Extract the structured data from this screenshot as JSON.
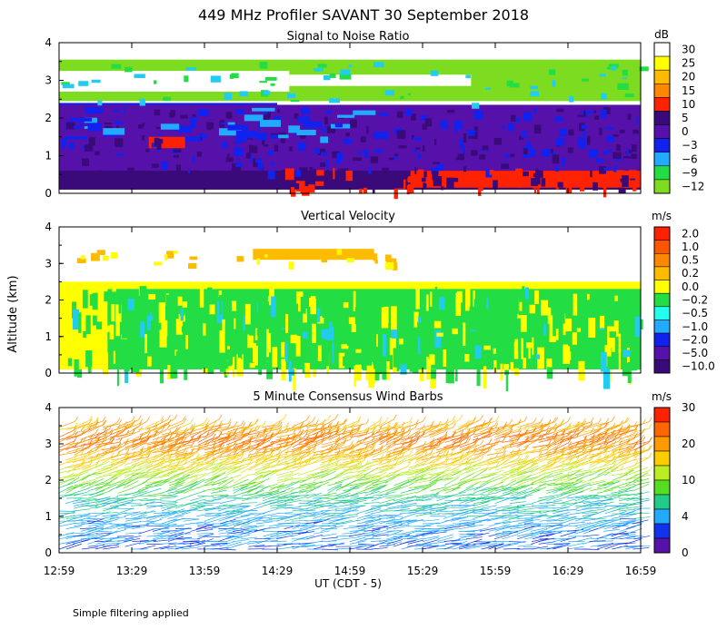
{
  "title": "449 MHz Profiler SAVANT 30 September 2018",
  "ylabel": "Altitude (km)",
  "xlabel": "UT  (CDT - 5)",
  "footnote": "Simple filtering applied",
  "time_ticks": [
    "12:59",
    "13:29",
    "13:59",
    "14:29",
    "14:59",
    "15:29",
    "15:59",
    "16:29",
    "16:59"
  ],
  "colors": {
    "lime": "#7ddc1f",
    "green": "#22dd44",
    "cyan": "#22ccee",
    "lightblue": "#22aaff",
    "blue": "#1122ee",
    "purple": "#5511aa",
    "darkpurple": "#3a0a7a",
    "red": "#ff2200",
    "orange": "#ff8800",
    "gold": "#ffbb00",
    "yellow": "#ffff00",
    "white": "#ffffff"
  },
  "chart_data": [
    {
      "type": "heatmap",
      "title": "Signal to Noise Ratio",
      "unit": "dB",
      "xlim": [
        "12:59",
        "16:59"
      ],
      "ylim": [
        0,
        4
      ],
      "yticks": [
        "0",
        "1",
        "2",
        "3",
        "4"
      ],
      "colorbar": {
        "labels": [
          "30",
          "25",
          "20",
          "15",
          "10",
          "5",
          "0",
          "−3",
          "−6",
          "−9",
          "−12"
        ],
        "colors": [
          "#ffffff",
          "#ffff00",
          "#ffbb00",
          "#ff8800",
          "#ff2200",
          "#3a0a7a",
          "#5511aa",
          "#1122ee",
          "#22aaff",
          "#22dd44",
          "#7ddc1f"
        ]
      },
      "layers": [
        {
          "color": "#7ddc1f",
          "y0": 2.45,
          "y1": 3.55,
          "x0": 0,
          "x1": 240
        },
        {
          "color": "#ffffff",
          "y0": 2.7,
          "y1": 3.25,
          "x0": 0,
          "x1": 95
        },
        {
          "color": "#ffffff",
          "y0": 2.85,
          "y1": 3.15,
          "x0": 95,
          "x1": 170
        },
        {
          "color": "#1122ee",
          "y0": 1.45,
          "y1": 2.4,
          "x0": 0,
          "x1": 90
        },
        {
          "color": "#5511aa",
          "y0": 0.1,
          "y1": 2.35,
          "x0": 0,
          "x1": 240
        },
        {
          "color": "#3a0a7a",
          "y0": 0.1,
          "y1": 0.6,
          "x0": 0,
          "x1": 240
        },
        {
          "color": "#ff2200",
          "y0": 0.15,
          "y1": 0.6,
          "x0": 145,
          "x1": 240
        },
        {
          "color": "#ff2200",
          "y0": 1.2,
          "y1": 1.5,
          "x0": 37,
          "x1": 52
        }
      ]
    },
    {
      "type": "heatmap",
      "title": "Vertical Velocity",
      "unit": "m/s",
      "xlim": [
        "12:59",
        "16:59"
      ],
      "ylim": [
        0,
        4
      ],
      "yticks": [
        "0",
        "1",
        "2",
        "3",
        "4"
      ],
      "colorbar": {
        "labels": [
          "2.0",
          "1.0",
          "0.5",
          "0.2",
          "0.0",
          "−0.2",
          "−0.5",
          "−1.0",
          "−2.0",
          "−5.0",
          "−10.0"
        ],
        "colors": [
          "#ff2200",
          "#ff5500",
          "#ff8800",
          "#ffbb00",
          "#ffff00",
          "#22dd44",
          "#22ffee",
          "#22aaff",
          "#1122ee",
          "#5511aa",
          "#3a0a7a"
        ]
      },
      "layers": [
        {
          "color": "#ffff00",
          "y0": 0.1,
          "y1": 2.5,
          "x0": 0,
          "x1": 240
        },
        {
          "color": "#22dd44",
          "y0": 0.1,
          "y1": 2.3,
          "x0": 20,
          "x1": 240
        },
        {
          "color": "#ffbb00",
          "y0": 3.1,
          "y1": 3.4,
          "x0": 80,
          "x1": 130
        }
      ]
    },
    {
      "type": "wind-barbs",
      "title": "5 Minute Consensus Wind Barbs",
      "unit": "m/s",
      "xlim": [
        "12:59",
        "16:59"
      ],
      "ylim": [
        0,
        4
      ],
      "yticks": [
        "0",
        "1",
        "2",
        "3",
        "4"
      ],
      "colorbar": {
        "labels": [
          "30",
          "20",
          "10",
          "4",
          "0"
        ],
        "colors": [
          "#ff2200",
          "#ff6600",
          "#ff9900",
          "#ffcc00",
          "#bbee22",
          "#55dd22",
          "#22cc88",
          "#22aaff",
          "#1133ee",
          "#5511aa"
        ]
      },
      "speed_profile": [
        {
          "alt": 0.2,
          "speed": 5
        },
        {
          "alt": 0.6,
          "speed": 6
        },
        {
          "alt": 1.0,
          "speed": 7
        },
        {
          "alt": 1.4,
          "speed": 9
        },
        {
          "alt": 1.8,
          "speed": 13
        },
        {
          "alt": 2.2,
          "speed": 17
        },
        {
          "alt": 2.6,
          "speed": 21
        },
        {
          "alt": 3.0,
          "speed": 26
        },
        {
          "alt": 3.4,
          "speed": 22
        }
      ]
    }
  ]
}
